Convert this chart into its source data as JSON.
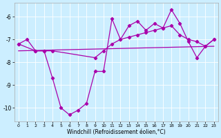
{
  "xlabel": "Windchill (Refroidissement éolien,°C)",
  "xlim": [
    -0.5,
    23.5
  ],
  "ylim": [
    -10.6,
    -5.4
  ],
  "yticks": [
    -10,
    -9,
    -8,
    -7,
    -6
  ],
  "xticks": [
    0,
    1,
    2,
    3,
    4,
    5,
    6,
    7,
    8,
    9,
    10,
    11,
    12,
    13,
    14,
    15,
    16,
    17,
    18,
    19,
    20,
    21,
    22,
    23
  ],
  "bg_color": "#cceeff",
  "line_color": "#aa00aa",
  "line1_x": [
    0,
    1,
    2,
    3,
    4,
    5,
    6,
    7,
    8,
    9,
    10,
    11,
    12,
    13,
    14,
    15,
    16,
    17,
    18,
    19,
    20,
    21,
    22,
    23
  ],
  "line1_y": [
    -7.2,
    -7.0,
    -7.5,
    -7.5,
    -8.7,
    -10.0,
    -10.3,
    -10.1,
    -9.8,
    -8.4,
    -8.4,
    -6.1,
    -7.0,
    -6.4,
    -6.2,
    -6.6,
    -6.3,
    -6.5,
    -5.7,
    -6.3,
    -7.1,
    -7.8,
    -7.3,
    -7.0
  ],
  "line2_x": [
    0,
    2,
    3,
    4,
    9,
    10,
    11,
    12,
    13,
    14,
    15,
    16,
    17,
    18,
    19,
    20,
    21,
    22,
    23
  ],
  "line2_y": [
    -7.2,
    -7.5,
    -7.5,
    -7.5,
    -7.8,
    -7.5,
    -7.2,
    -7.0,
    -6.9,
    -6.8,
    -6.7,
    -6.6,
    -6.5,
    -6.4,
    -6.8,
    -7.0,
    -7.1,
    -7.3,
    -7.0
  ],
  "line3_x": [
    0,
    23
  ],
  "line3_y": [
    -7.5,
    -7.3
  ]
}
